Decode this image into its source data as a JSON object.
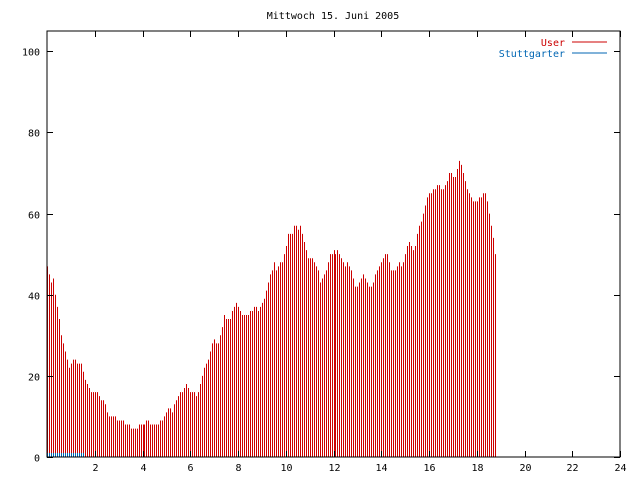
{
  "chart_data": {
    "type": "bar",
    "title": "Mittwoch 15. Juni 2005",
    "xlabel": "",
    "ylabel": "",
    "xlim": [
      0,
      24
    ],
    "ylim": [
      0,
      105
    ],
    "x_ticks": [
      "2",
      "4",
      "6",
      "8",
      "10",
      "12",
      "14",
      "16",
      "18",
      "20",
      "22",
      "24"
    ],
    "y_ticks": [
      "0",
      "20",
      "40",
      "60",
      "80",
      "100"
    ],
    "legend_position": "top-right",
    "grid": false,
    "colors": {
      "user": "#cc0000",
      "stuttgarter": "#0066b3",
      "axis": "#000000"
    },
    "series": [
      {
        "name": "User",
        "interval_minutes": 5,
        "values": [
          47,
          45,
          43,
          44,
          40,
          37,
          34,
          30,
          28,
          26,
          24,
          22,
          23,
          24,
          24,
          23,
          23,
          23,
          21,
          19,
          18,
          17,
          16,
          16,
          16,
          16,
          15,
          14,
          14,
          13,
          11,
          10,
          10,
          10,
          10,
          9,
          9,
          9,
          9,
          8,
          8,
          8,
          7,
          7,
          7,
          7,
          8,
          8,
          8,
          8,
          9,
          9,
          8,
          8,
          8,
          8,
          8,
          9,
          9,
          10,
          11,
          12,
          12,
          11,
          13,
          14,
          15,
          16,
          16,
          17,
          18,
          17,
          16,
          16,
          16,
          15,
          16,
          18,
          20,
          22,
          23,
          24,
          26,
          28,
          29,
          28,
          28,
          30,
          32,
          35,
          34,
          34,
          34,
          36,
          37,
          38,
          37,
          36,
          35,
          35,
          35,
          35,
          36,
          36,
          37,
          37,
          36,
          37,
          38,
          39,
          41,
          43,
          45,
          46,
          48,
          46,
          47,
          48,
          48,
          50,
          52,
          55,
          55,
          55,
          57,
          57,
          56,
          57,
          55,
          53,
          51,
          49,
          49,
          49,
          48,
          47,
          46,
          43,
          44,
          45,
          46,
          48,
          50,
          50,
          51,
          50,
          51,
          50,
          49,
          48,
          47,
          48,
          47,
          46,
          44,
          42,
          42,
          43,
          44,
          45,
          44,
          43,
          42,
          42,
          43,
          45,
          46,
          47,
          48,
          49,
          50,
          50,
          48,
          46,
          46,
          46,
          47,
          48,
          47,
          48,
          50,
          52,
          53,
          52,
          51,
          52,
          55,
          57,
          58,
          60,
          62,
          64,
          65,
          65,
          66,
          66,
          67,
          67,
          66,
          66,
          67,
          68,
          70,
          70,
          69,
          69,
          71,
          73,
          72,
          70,
          68,
          66,
          65,
          64,
          63,
          63,
          63,
          64,
          64,
          65,
          65,
          63,
          60,
          57,
          54,
          50
        ]
      },
      {
        "name": "Stuttgarter",
        "interval_minutes": 5,
        "values": [
          1,
          1,
          1,
          1,
          1,
          1,
          1,
          1,
          1,
          1,
          1,
          1,
          1,
          1,
          1,
          1,
          1,
          1,
          1,
          0,
          0,
          0,
          0,
          0,
          0,
          0,
          0,
          0,
          0,
          0,
          0,
          0,
          0,
          0,
          0,
          0,
          0,
          0,
          0,
          0,
          0,
          0,
          0,
          0,
          0,
          0,
          0,
          0,
          0,
          0,
          0,
          0,
          0,
          0,
          0,
          0,
          0,
          0,
          0,
          0,
          0,
          0,
          0,
          0,
          0,
          0,
          0,
          0,
          0,
          0,
          0,
          0,
          0,
          0,
          0,
          0,
          0,
          0,
          0,
          0,
          0,
          0,
          0,
          0,
          0,
          0,
          0,
          0,
          0,
          0,
          0,
          0,
          0,
          0,
          0,
          0,
          0,
          0,
          0,
          0,
          0,
          0,
          0,
          0,
          0,
          0,
          0,
          0,
          0,
          0,
          0,
          0,
          0,
          0,
          0,
          0,
          0,
          0,
          0,
          0,
          0,
          0,
          0,
          0,
          0,
          0,
          0,
          0,
          0,
          0,
          0,
          0,
          0,
          0,
          0,
          0,
          0,
          0,
          0,
          0,
          0,
          0,
          0,
          0,
          0,
          0,
          0,
          0,
          0,
          0,
          0,
          0,
          0,
          0,
          0,
          0,
          0,
          0,
          0,
          0,
          0,
          0,
          0,
          0,
          0,
          0,
          0,
          0,
          0,
          0,
          0,
          0,
          0,
          0,
          0,
          0,
          0,
          0,
          0,
          0,
          0,
          0,
          0,
          0,
          0,
          0,
          0,
          0,
          0,
          0,
          0,
          0,
          0,
          0,
          0,
          0,
          0,
          0,
          0,
          0,
          0,
          0,
          0,
          0,
          0,
          0,
          0,
          0,
          0,
          0,
          0,
          0,
          0,
          0,
          0,
          0,
          0,
          0,
          0,
          0,
          0,
          0,
          0,
          0,
          0,
          0,
          0,
          0,
          0,
          0,
          0,
          0,
          0,
          0,
          0,
          0,
          0,
          0,
          0,
          0,
          0,
          0,
          0,
          0,
          0,
          0,
          0,
          0,
          0
        ]
      }
    ]
  }
}
